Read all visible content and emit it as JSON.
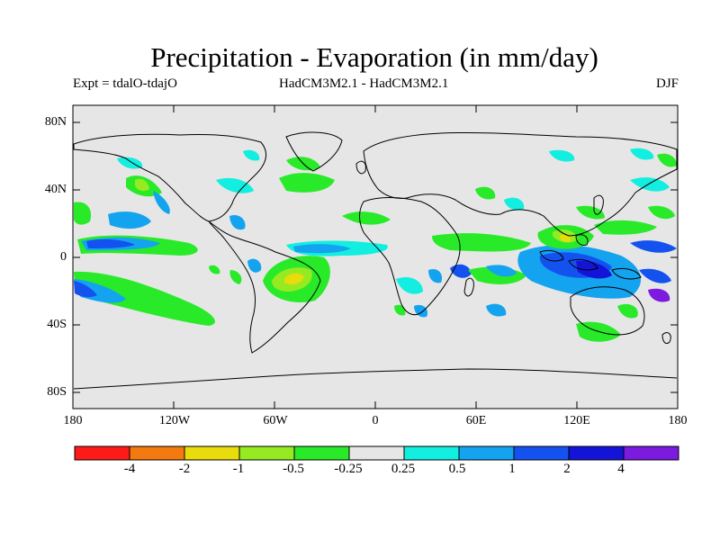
{
  "title": "Precipitation - Evaporation (in mm/day)",
  "expt": "Expt = tdalO-tdajO",
  "models": "HadCM3M2.1 - HadCM3M2.1",
  "season": "DJF",
  "colors": {
    "land_bg": "#e6e6e6",
    "coast": "#000000",
    "bins": [
      "#ff1a1a",
      "#f47a10",
      "#e9dc0c",
      "#96ea22",
      "#29ea29",
      "#e6e6e6",
      "#12eee0",
      "#14a3ef",
      "#1452ef",
      "#1414d8",
      "#7c1ae0"
    ]
  },
  "map": {
    "lat_labels": [
      "80N",
      "40N",
      "0",
      "40S",
      "80S"
    ],
    "lon_labels": [
      "180",
      "120W",
      "60W",
      "0",
      "60E",
      "120E",
      "180"
    ]
  },
  "colorbar": {
    "labels": [
      "-4",
      "-2",
      "-1",
      "-0.5",
      "-0.25",
      "0.25",
      "0.5",
      "1",
      "2",
      "4"
    ]
  }
}
